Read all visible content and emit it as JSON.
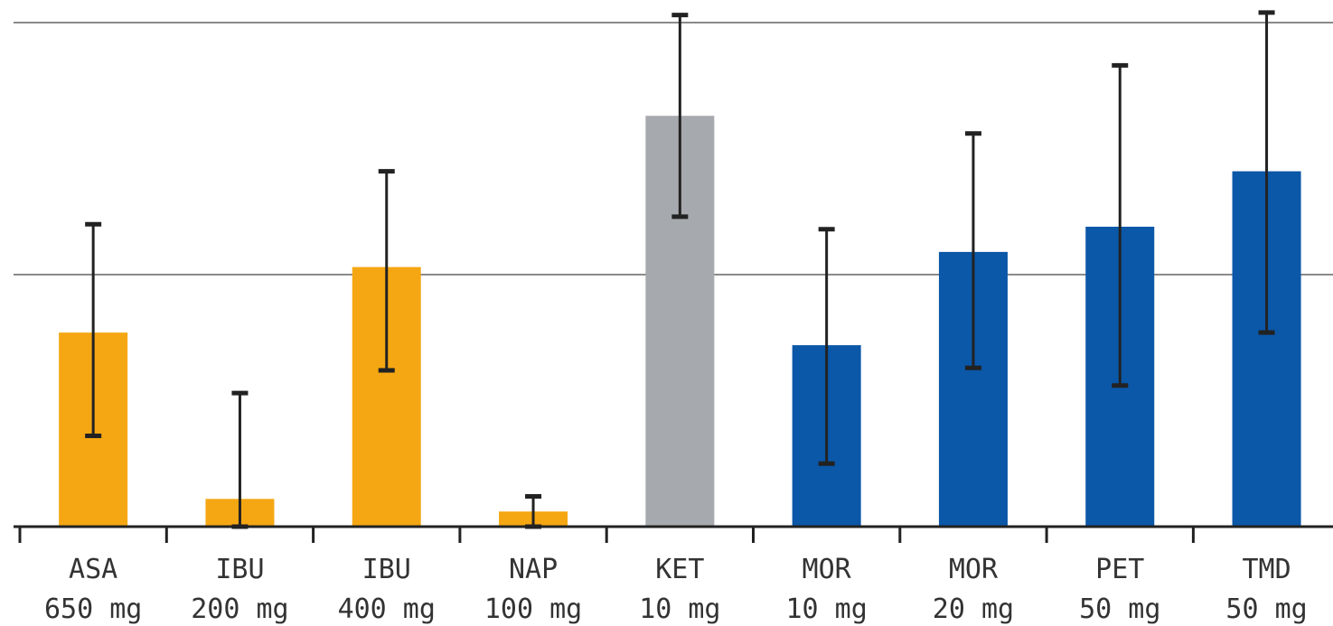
{
  "chart_data": {
    "type": "bar",
    "ylim": [
      0,
      2
    ],
    "grid": true,
    "gridlines": [
      1,
      2
    ],
    "categories": [
      {
        "drug": "ASA",
        "dose": "650 mg"
      },
      {
        "drug": "IBU",
        "dose": "200 mg"
      },
      {
        "drug": "IBU",
        "dose": "400 mg"
      },
      {
        "drug": "NAP",
        "dose": "100 mg"
      },
      {
        "drug": "KET",
        "dose": "10 mg"
      },
      {
        "drug": "MOR",
        "dose": "10 mg"
      },
      {
        "drug": "MOR",
        "dose": "20 mg"
      },
      {
        "drug": "PET",
        "dose": "50 mg"
      },
      {
        "drug": "TMD",
        "dose": "50 mg"
      }
    ],
    "values": [
      0.77,
      0.11,
      1.03,
      0.06,
      1.63,
      0.72,
      1.09,
      1.19,
      1.41
    ],
    "error_low": [
      0.36,
      0.0,
      0.62,
      0.0,
      1.23,
      0.25,
      0.63,
      0.56,
      0.77
    ],
    "error_high": [
      1.2,
      0.53,
      1.41,
      0.12,
      2.03,
      1.18,
      1.56,
      1.83,
      2.04
    ],
    "bar_colors": [
      "#f5a713",
      "#f5a713",
      "#f5a713",
      "#f5a713",
      "#a6a9ad",
      "#0b57a8",
      "#0b57a8",
      "#0b57a8",
      "#0b57a8"
    ],
    "gridline_color": "#8a8a8a",
    "axis_color": "#222222",
    "errorbar_color": "#222222"
  }
}
